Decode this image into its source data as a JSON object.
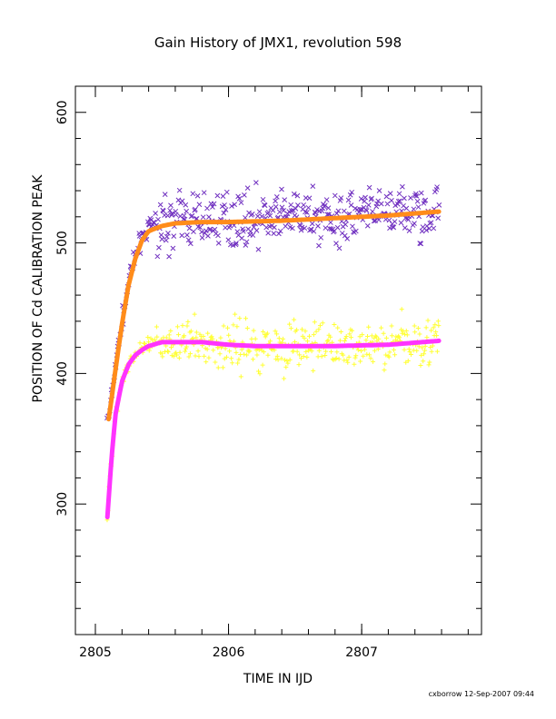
{
  "chart_data": {
    "type": "scatter",
    "title": "Gain History of JMX1, revolution 598",
    "xlabel": "TIME IN IJD",
    "ylabel": "POSITION OF Cd CALIBRATION PEAK",
    "xlim": [
      2804.85,
      2807.9
    ],
    "ylim": [
      200,
      620
    ],
    "xticks": [
      2805,
      2806,
      2807
    ],
    "yticks": [
      300,
      400,
      500,
      600
    ],
    "x_range": [
      2805.09,
      2807.58
    ],
    "grid": false,
    "series": [
      {
        "marker": "x",
        "color": "#7030c0",
        "x": [
          2805.1,
          2805.15,
          2805.2,
          2805.25,
          2805.3,
          2805.35,
          2805.4,
          2805.5,
          2805.6,
          2805.7,
          2805.8,
          2806.0,
          2806.2,
          2806.4,
          2806.6,
          2806.8,
          2807.0,
          2807.2,
          2807.4,
          2807.58
        ],
        "y": [
          365,
          405,
          440,
          470,
          490,
          505,
          512,
          515,
          517,
          518,
          518,
          518,
          519,
          519,
          520,
          520,
          521,
          522,
          523,
          525
        ],
        "spread": 14
      },
      {
        "marker": "+",
        "color": "#ffff33",
        "x": [
          2805.09,
          2805.12,
          2805.15,
          2805.2,
          2805.25,
          2805.3,
          2805.4,
          2805.5,
          2805.6,
          2805.8,
          2806.0,
          2806.2,
          2806.4,
          2806.6,
          2806.8,
          2807.0,
          2807.2,
          2807.4,
          2807.58
        ],
        "y": [
          290,
          335,
          370,
          395,
          408,
          415,
          421,
          423,
          424,
          423,
          422,
          421,
          421,
          421,
          421,
          422,
          423,
          425,
          427
        ],
        "spread": 13
      },
      {
        "marker": "line",
        "color": "#ff8c1a",
        "x": [
          2805.1,
          2805.15,
          2805.2,
          2805.25,
          2805.3,
          2805.35,
          2805.4,
          2805.5,
          2805.6,
          2805.8,
          2806.0,
          2806.4,
          2806.8,
          2807.2,
          2807.58
        ],
        "y": [
          365,
          402,
          438,
          468,
          488,
          502,
          509,
          513,
          515,
          516,
          516,
          517,
          519,
          521,
          524
        ]
      },
      {
        "marker": "line",
        "color": "#ff33ff",
        "x": [
          2805.09,
          2805.12,
          2805.15,
          2805.2,
          2805.25,
          2805.3,
          2805.35,
          2805.4,
          2805.5,
          2805.6,
          2805.8,
          2806.0,
          2806.2,
          2806.4,
          2806.8,
          2807.2,
          2807.58
        ],
        "y": [
          290,
          333,
          368,
          394,
          407,
          414,
          418,
          421,
          424,
          424,
          424,
          422,
          421,
          421,
          421,
          422,
          425
        ]
      }
    ]
  },
  "footer": "cxborrow 12-Sep-2007 09:44"
}
